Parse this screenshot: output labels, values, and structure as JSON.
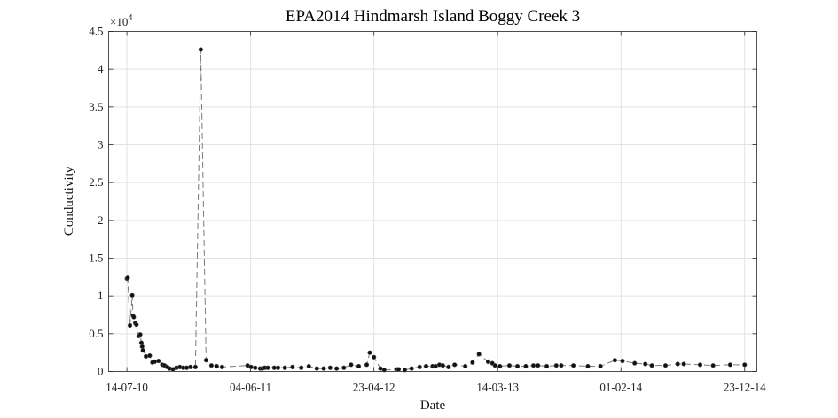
{
  "chart_data": {
    "type": "line",
    "title": "EPA2014 Hindmarsh Island Boggy Creek 3",
    "xlabel": "Date",
    "ylabel": "Conductivity",
    "y_exponent_label": "×10",
    "y_exponent_power": "4",
    "y_multiplier": 10000,
    "xlim": [
      "2010-05-27",
      "2015-01-24"
    ],
    "ylim": [
      0,
      45000
    ],
    "x_ticks": [
      {
        "date": "2010-07-14",
        "label": "14-07-10"
      },
      {
        "date": "2011-06-04",
        "label": "04-06-11"
      },
      {
        "date": "2012-04-23",
        "label": "23-04-12"
      },
      {
        "date": "2013-03-14",
        "label": "14-03-13"
      },
      {
        "date": "2014-02-01",
        "label": "01-02-14"
      },
      {
        "date": "2014-12-23",
        "label": "23-12-14"
      }
    ],
    "y_ticks": [
      {
        "value": 0,
        "label": "0"
      },
      {
        "value": 5000,
        "label": "0.5"
      },
      {
        "value": 10000,
        "label": "1"
      },
      {
        "value": 15000,
        "label": "1.5"
      },
      {
        "value": 20000,
        "label": "2"
      },
      {
        "value": 25000,
        "label": "2.5"
      },
      {
        "value": 30000,
        "label": "3"
      },
      {
        "value": 35000,
        "label": "3.5"
      },
      {
        "value": 40000,
        "label": "4"
      },
      {
        "value": 45000,
        "label": "4.5"
      }
    ],
    "grid": true,
    "series": [
      {
        "x": [
          "2010-07-14",
          "2010-07-16",
          "2010-07-22",
          "2010-07-28",
          "2010-07-30",
          "2010-08-01",
          "2010-08-05",
          "2010-08-08",
          "2010-08-14",
          "2010-08-18",
          "2010-08-21",
          "2010-08-23",
          "2010-08-25",
          "2010-09-02",
          "2010-09-12",
          "2010-09-19",
          "2010-09-25",
          "2010-10-05",
          "2010-10-15",
          "2010-10-21",
          "2010-10-28",
          "2010-11-03",
          "2010-11-12",
          "2010-11-21",
          "2010-11-30",
          "2010-12-09",
          "2010-12-18",
          "2010-12-28",
          "2011-01-10",
          "2011-01-24",
          "2011-02-07",
          "2011-02-21",
          "2011-03-07",
          "2011-03-21",
          "2011-05-27",
          "2011-06-05",
          "2011-06-16",
          "2011-06-29",
          "2011-07-05",
          "2011-07-11",
          "2011-07-19",
          "2011-08-05",
          "2011-08-15",
          "2011-09-02",
          "2011-09-22",
          "2011-10-15",
          "2011-11-04",
          "2011-11-25",
          "2011-12-13",
          "2011-12-30",
          "2012-01-16",
          "2012-02-04",
          "2012-02-23",
          "2012-03-14",
          "2012-04-04",
          "2012-04-12",
          "2012-04-23",
          "2012-05-10",
          "2012-05-20",
          "2012-06-21",
          "2012-06-27",
          "2012-07-13",
          "2012-07-31",
          "2012-08-21",
          "2012-09-07",
          "2012-09-24",
          "2012-10-02",
          "2012-10-12",
          "2012-10-21",
          "2012-11-05",
          "2012-11-21",
          "2012-12-19",
          "2013-01-07",
          "2013-01-24",
          "2013-02-17",
          "2013-02-28",
          "2013-03-07",
          "2013-03-20",
          "2013-04-14",
          "2013-05-05",
          "2013-05-27",
          "2013-06-16",
          "2013-06-28",
          "2013-07-21",
          "2013-08-15",
          "2013-08-28",
          "2013-09-29",
          "2013-11-06",
          "2013-12-09",
          "2014-01-16",
          "2014-02-05",
          "2014-03-09",
          "2014-04-06",
          "2014-04-23",
          "2014-05-29",
          "2014-06-30",
          "2014-07-16",
          "2014-08-28",
          "2014-10-01",
          "2014-11-15",
          "2014-12-23"
        ],
        "y": [
          12300,
          12400,
          6100,
          10100,
          7400,
          7200,
          6400,
          6200,
          4700,
          4900,
          3800,
          3300,
          2800,
          2000,
          2100,
          1200,
          1300,
          1400,
          900,
          800,
          600,
          400,
          300,
          500,
          600,
          500,
          500,
          600,
          600,
          42600,
          1500,
          800,
          700,
          600,
          800,
          600,
          500,
          400,
          400,
          500,
          500,
          500,
          500,
          500,
          600,
          500,
          700,
          400,
          400,
          500,
          400,
          500,
          900,
          700,
          900,
          2500,
          1900,
          400,
          200,
          300,
          300,
          200,
          400,
          600,
          700,
          700,
          700,
          900,
          800,
          600,
          900,
          700,
          1200,
          2300,
          1300,
          1100,
          800,
          700,
          800,
          700,
          700,
          800,
          800,
          700,
          800,
          800,
          800,
          700,
          700,
          1500,
          1400,
          1100,
          1000,
          800,
          800,
          1000,
          1000,
          900,
          800,
          900,
          900
        ]
      }
    ]
  }
}
